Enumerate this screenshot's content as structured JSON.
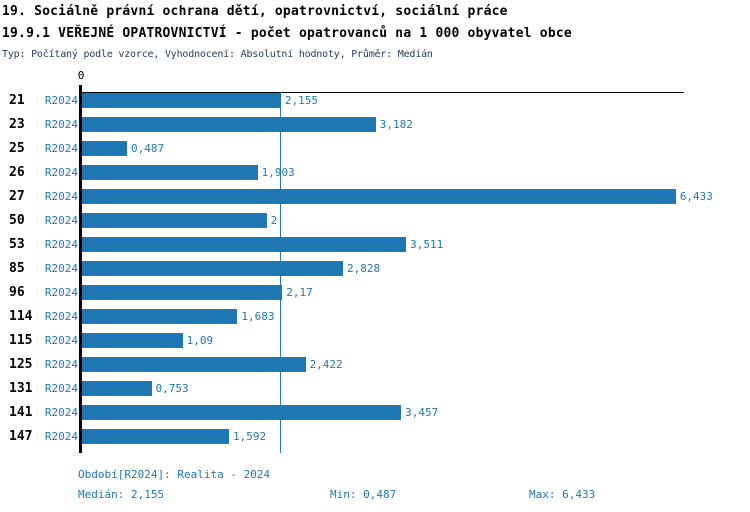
{
  "header": {
    "line1": "19. Sociálně právní ochrana dětí, opatrovnictví, sociální práce",
    "line2": "19.9.1 VEŘEJNÉ OPATROVNICTVÍ - počet opatrovanců na 1 000 obyvatel obce",
    "line3": "Typ: Počítaný podle vzorce, Vyhodnocení: Absolutní hodnoty, Průměr: Medián"
  },
  "chart_data": {
    "type": "bar",
    "orientation": "horizontal",
    "title": "19.9.1 VEŘEJNÉ OPATROVNICTVÍ - počet opatrovanců na 1 000 obyvatel obce",
    "categories": [
      "21",
      "23",
      "25",
      "26",
      "27",
      "50",
      "53",
      "85",
      "96",
      "114",
      "115",
      "125",
      "131",
      "141",
      "147"
    ],
    "series": [
      {
        "name": "R2024",
        "values": [
          2.155,
          3.182,
          0.487,
          1.903,
          6.433,
          2,
          3.511,
          2.828,
          2.17,
          1.683,
          1.09,
          2.422,
          0.753,
          3.457,
          1.592
        ],
        "value_labels": [
          "2,155",
          "3,182",
          "0,487",
          "1,903",
          "6,433",
          "2",
          "3,511",
          "2,828",
          "2,17",
          "1,683",
          "1,09",
          "2,422",
          "0,753",
          "3,457",
          "1,592"
        ]
      }
    ],
    "xlim": [
      0,
      6.5
    ],
    "x_tick_labels": [
      "0"
    ],
    "median_line_value": 2.155,
    "grid": false,
    "legend": false,
    "bar_color": "#1f77b4",
    "median_line_color": "#1f77b4",
    "label_text_color": "#1f77b4",
    "category_text_color": "#000000",
    "axis_color": "#000000"
  },
  "footer": {
    "period_label": "Období[R2024]: Realita - 2024",
    "median_label": "Medián: 2,155",
    "min_label": "Min: 0,487",
    "max_label": "Max: 6,433"
  }
}
